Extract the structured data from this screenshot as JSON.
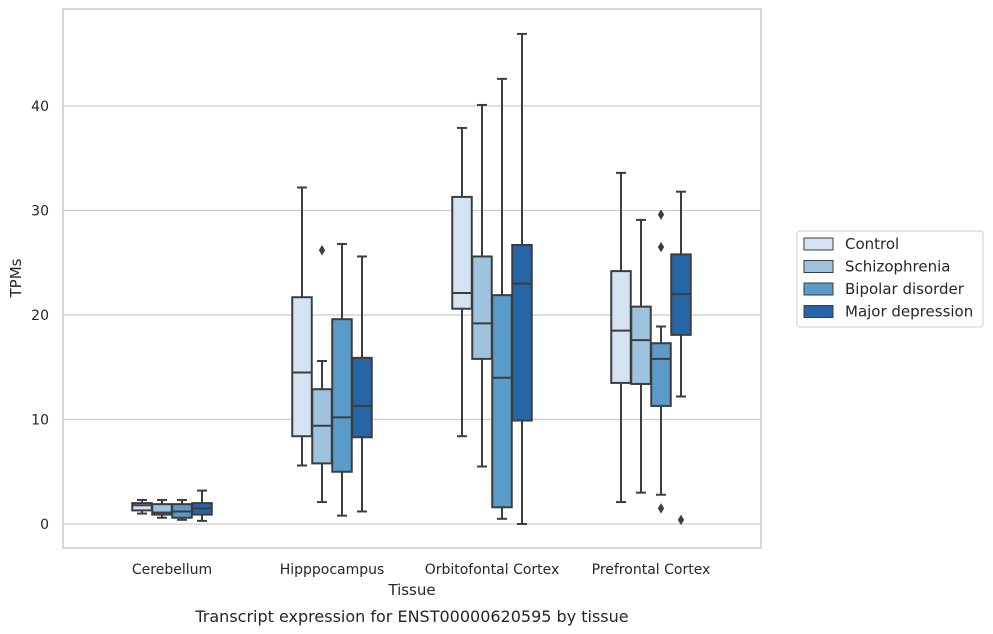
{
  "chart_data": {
    "type": "box",
    "title": "",
    "caption": "Transcript expression for ENST00000620595 by tissue",
    "xlabel": "Tissue",
    "ylabel": "TPMs",
    "ylim": [
      -2.3,
      49.3
    ],
    "yticks": [
      0,
      10,
      20,
      30,
      40
    ],
    "grid": "horizontal",
    "legend_position": "right",
    "categories": [
      "Cerebellum",
      "Hipppocampus",
      "Orbitofontal Cortex",
      "Prefrontal Cortex"
    ],
    "series": [
      {
        "name": "Control",
        "color": "#d3e3f2",
        "boxes": [
          {
            "whislo": 1.0,
            "q1": 1.3,
            "med": 1.8,
            "q3": 2.0,
            "whishi": 2.3,
            "fliers": []
          },
          {
            "whislo": 5.6,
            "q1": 8.4,
            "med": 14.5,
            "q3": 21.7,
            "whishi": 32.2,
            "fliers": []
          },
          {
            "whislo": 8.4,
            "q1": 20.6,
            "med": 22.1,
            "q3": 31.3,
            "whishi": 37.9,
            "fliers": []
          },
          {
            "whislo": 2.1,
            "q1": 13.5,
            "med": 18.5,
            "q3": 24.2,
            "whishi": 33.6,
            "fliers": []
          }
        ]
      },
      {
        "name": "Schizophrenia",
        "color": "#9dc3de",
        "boxes": [
          {
            "whislo": 0.6,
            "q1": 0.9,
            "med": 1.1,
            "q3": 1.9,
            "whishi": 2.3,
            "fliers": []
          },
          {
            "whislo": 2.1,
            "q1": 5.8,
            "med": 9.4,
            "q3": 12.9,
            "whishi": 15.6,
            "fliers": [
              26.2
            ]
          },
          {
            "whislo": 5.5,
            "q1": 15.8,
            "med": 19.2,
            "q3": 25.6,
            "whishi": 40.1,
            "fliers": []
          },
          {
            "whislo": 3.0,
            "q1": 13.4,
            "med": 17.6,
            "q3": 20.8,
            "whishi": 29.1,
            "fliers": []
          }
        ]
      },
      {
        "name": "Bipolar disorder",
        "color": "#5b9bc9",
        "boxes": [
          {
            "whislo": 0.4,
            "q1": 0.6,
            "med": 1.2,
            "q3": 1.9,
            "whishi": 2.3,
            "fliers": []
          },
          {
            "whislo": 0.8,
            "q1": 5.0,
            "med": 10.2,
            "q3": 19.6,
            "whishi": 26.8,
            "fliers": []
          },
          {
            "whislo": 0.5,
            "q1": 1.6,
            "med": 14.0,
            "q3": 21.9,
            "whishi": 42.6,
            "fliers": []
          },
          {
            "whislo": 2.8,
            "q1": 11.3,
            "med": 15.8,
            "q3": 17.3,
            "whishi": 18.9,
            "fliers": [
              29.6,
              26.5,
              1.5
            ]
          }
        ]
      },
      {
        "name": "Major depression",
        "color": "#2665a6",
        "boxes": [
          {
            "whislo": 0.3,
            "q1": 0.9,
            "med": 1.5,
            "q3": 2.0,
            "whishi": 3.2,
            "fliers": []
          },
          {
            "whislo": 1.2,
            "q1": 8.3,
            "med": 11.3,
            "q3": 15.9,
            "whishi": 25.6,
            "fliers": []
          },
          {
            "whislo": 0.0,
            "q1": 9.9,
            "med": 23.0,
            "q3": 26.7,
            "whishi": 46.9,
            "fliers": []
          },
          {
            "whislo": 12.2,
            "q1": 18.1,
            "med": 22.0,
            "q3": 25.8,
            "whishi": 31.8,
            "fliers": [
              0.4
            ]
          }
        ]
      }
    ]
  }
}
